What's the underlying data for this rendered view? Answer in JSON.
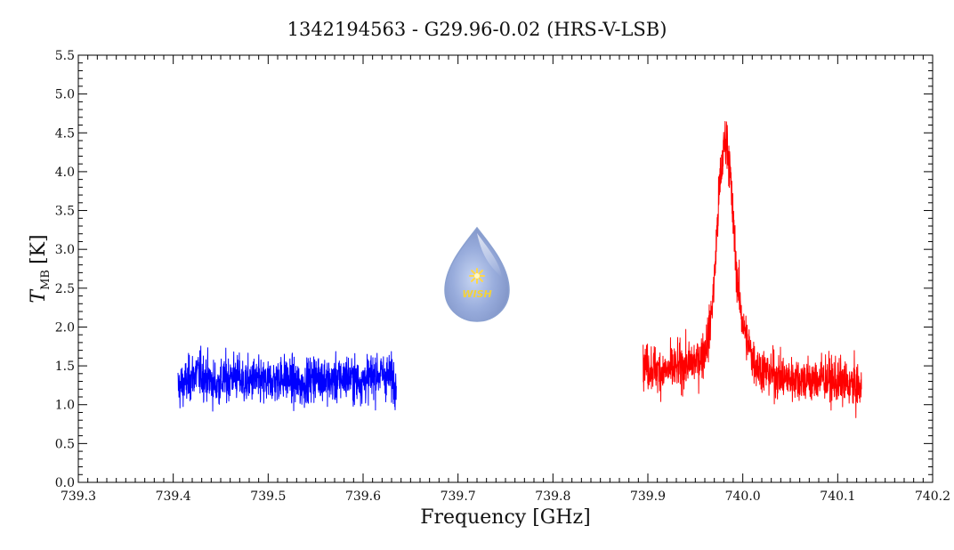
{
  "chart_data": {
    "type": "line",
    "title": "1342194563 - G29.96-0.02 (HRS-V-LSB)",
    "xlabel": "Frequency [GHz]",
    "ylabel": {
      "symbol": "T",
      "subscript": "MB",
      "unit": "[K]"
    },
    "xlim": [
      739.3,
      740.2
    ],
    "ylim": [
      0.0,
      5.5
    ],
    "x_ticks": [
      "739.3",
      "739.4",
      "739.5",
      "739.6",
      "739.7",
      "739.8",
      "739.9",
      "740.0",
      "740.1",
      "740.2"
    ],
    "y_ticks": [
      "0.0",
      "0.5",
      "1.0",
      "1.5",
      "2.0",
      "2.5",
      "3.0",
      "3.5",
      "4.0",
      "4.5",
      "5.0",
      "5.5"
    ],
    "grid": false,
    "series": [
      {
        "color": "#0000ff",
        "x": [
          739.405,
          739.415,
          739.425,
          739.435,
          739.445,
          739.455,
          739.465,
          739.475,
          739.485,
          739.495,
          739.505,
          739.515,
          739.525,
          739.535,
          739.545,
          739.555,
          739.565,
          739.575,
          739.585,
          739.595,
          739.605,
          739.615,
          739.625,
          739.635
        ],
        "y": [
          1.22,
          1.3,
          1.42,
          1.35,
          1.25,
          1.33,
          1.38,
          1.28,
          1.32,
          1.27,
          1.31,
          1.36,
          1.3,
          1.24,
          1.34,
          1.38,
          1.29,
          1.33,
          1.36,
          1.3,
          1.34,
          1.4,
          1.37,
          1.32
        ],
        "noise": 0.13
      },
      {
        "color": "#ff0000",
        "x": [
          739.895,
          739.905,
          739.915,
          739.925,
          739.935,
          739.945,
          739.955,
          739.96,
          739.965,
          739.97,
          739.975,
          739.98,
          739.983,
          739.986,
          739.99,
          739.995,
          740.0,
          740.005,
          740.01,
          740.015,
          740.025,
          740.035,
          740.045,
          740.055,
          740.065,
          740.075,
          740.085,
          740.095,
          740.105,
          740.115,
          740.125
        ],
        "y": [
          1.5,
          1.48,
          1.42,
          1.45,
          1.5,
          1.52,
          1.6,
          1.7,
          1.95,
          2.6,
          3.7,
          4.3,
          4.45,
          4.1,
          3.3,
          2.5,
          2.05,
          1.8,
          1.62,
          1.5,
          1.42,
          1.38,
          1.33,
          1.35,
          1.32,
          1.3,
          1.35,
          1.3,
          1.28,
          1.25,
          1.2
        ],
        "noise": 0.13
      }
    ],
    "watermark": {
      "text": "WISH"
    }
  }
}
